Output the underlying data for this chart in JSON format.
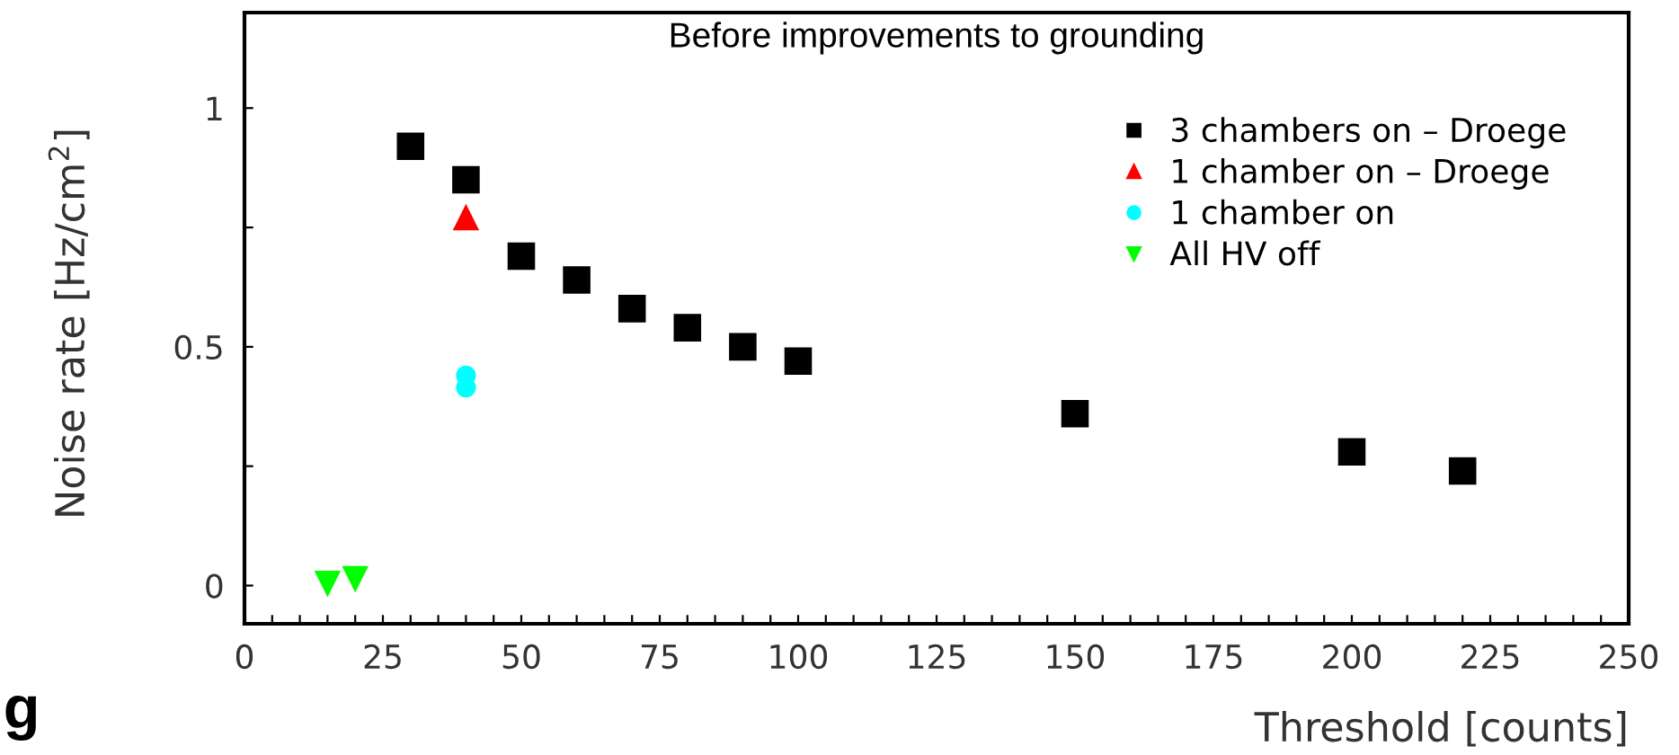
{
  "chart_data": {
    "type": "scatter",
    "title": "Before improvements to grounding",
    "xlabel": "Threshold [counts]",
    "ylabel": "Noise rate [Hz/cm$^{2}$]",
    "xlim": [
      0,
      250
    ],
    "ylim": [
      -0.08,
      1.2
    ],
    "xticks": [
      0,
      {
        "value": 5,
        "label": null
      },
      {
        "value": 10,
        "label": null
      },
      {
        "value": 15,
        "label": null
      },
      {
        "value": 20,
        "label": null
      },
      25,
      {
        "value": 30,
        "label": null
      },
      {
        "value": 35,
        "label": null
      },
      {
        "value": 40,
        "label": null
      },
      {
        "value": 45,
        "label": null
      },
      50,
      {
        "value": 55,
        "label": null
      },
      {
        "value": 60,
        "label": null
      },
      {
        "value": 65,
        "label": null
      },
      {
        "value": 70,
        "label": null
      },
      75,
      {
        "value": 80,
        "label": null
      },
      {
        "value": 85,
        "label": null
      },
      {
        "value": 90,
        "label": null
      },
      {
        "value": 95,
        "label": null
      },
      100,
      {
        "value": 105,
        "label": null
      },
      {
        "value": 110,
        "label": null
      },
      {
        "value": 115,
        "label": null
      },
      {
        "value": 120,
        "label": null
      },
      125,
      {
        "value": 130,
        "label": null
      },
      {
        "value": 135,
        "label": null
      },
      {
        "value": 140,
        "label": null
      },
      {
        "value": 145,
        "label": null
      },
      150,
      {
        "value": 155,
        "label": null
      },
      {
        "value": 160,
        "label": null
      },
      {
        "value": 165,
        "label": null
      },
      {
        "value": 170,
        "label": null
      },
      175,
      {
        "value": 180,
        "label": null
      },
      {
        "value": 185,
        "label": null
      },
      {
        "value": 190,
        "label": null
      },
      {
        "value": 195,
        "label": null
      },
      200,
      {
        "value": 205,
        "label": null
      },
      {
        "value": 210,
        "label": null
      },
      {
        "value": 215,
        "label": null
      },
      {
        "value": 220,
        "label": null
      },
      225,
      {
        "value": 230,
        "label": null
      },
      {
        "value": 235,
        "label": null
      },
      {
        "value": 240,
        "label": null
      },
      {
        "value": 245,
        "label": null
      },
      250
    ],
    "yticks": [
      0,
      {
        "value": 0.25,
        "label": null
      },
      0.5,
      {
        "value": 0.75,
        "label": null
      },
      1
    ],
    "grid": false,
    "legend": "top right",
    "annotations": [
      "g"
    ],
    "series": [
      {
        "name": "3 chambers on – Droege",
        "color": "#000000",
        "marker": "square",
        "x": [
          30,
          40,
          50,
          60,
          70,
          80,
          90,
          100,
          150,
          200,
          220
        ],
        "values": [
          0.92,
          0.85,
          0.69,
          0.64,
          0.58,
          0.54,
          0.5,
          0.47,
          0.36,
          0.28,
          0.24
        ]
      },
      {
        "name": "1 chamber on – Droege",
        "color": "#ff0000",
        "marker": "triangle",
        "x": [
          40
        ],
        "values": [
          0.77
        ]
      },
      {
        "name": "1 chamber on",
        "color": "#00ffff",
        "marker": "circle",
        "x": [
          40,
          40
        ],
        "values": [
          0.44,
          0.415
        ]
      },
      {
        "name": "All HV off",
        "color": "#00ff00",
        "marker": "triangle_down",
        "x": [
          15,
          20
        ],
        "values": [
          0.005,
          0.015
        ]
      }
    ]
  }
}
